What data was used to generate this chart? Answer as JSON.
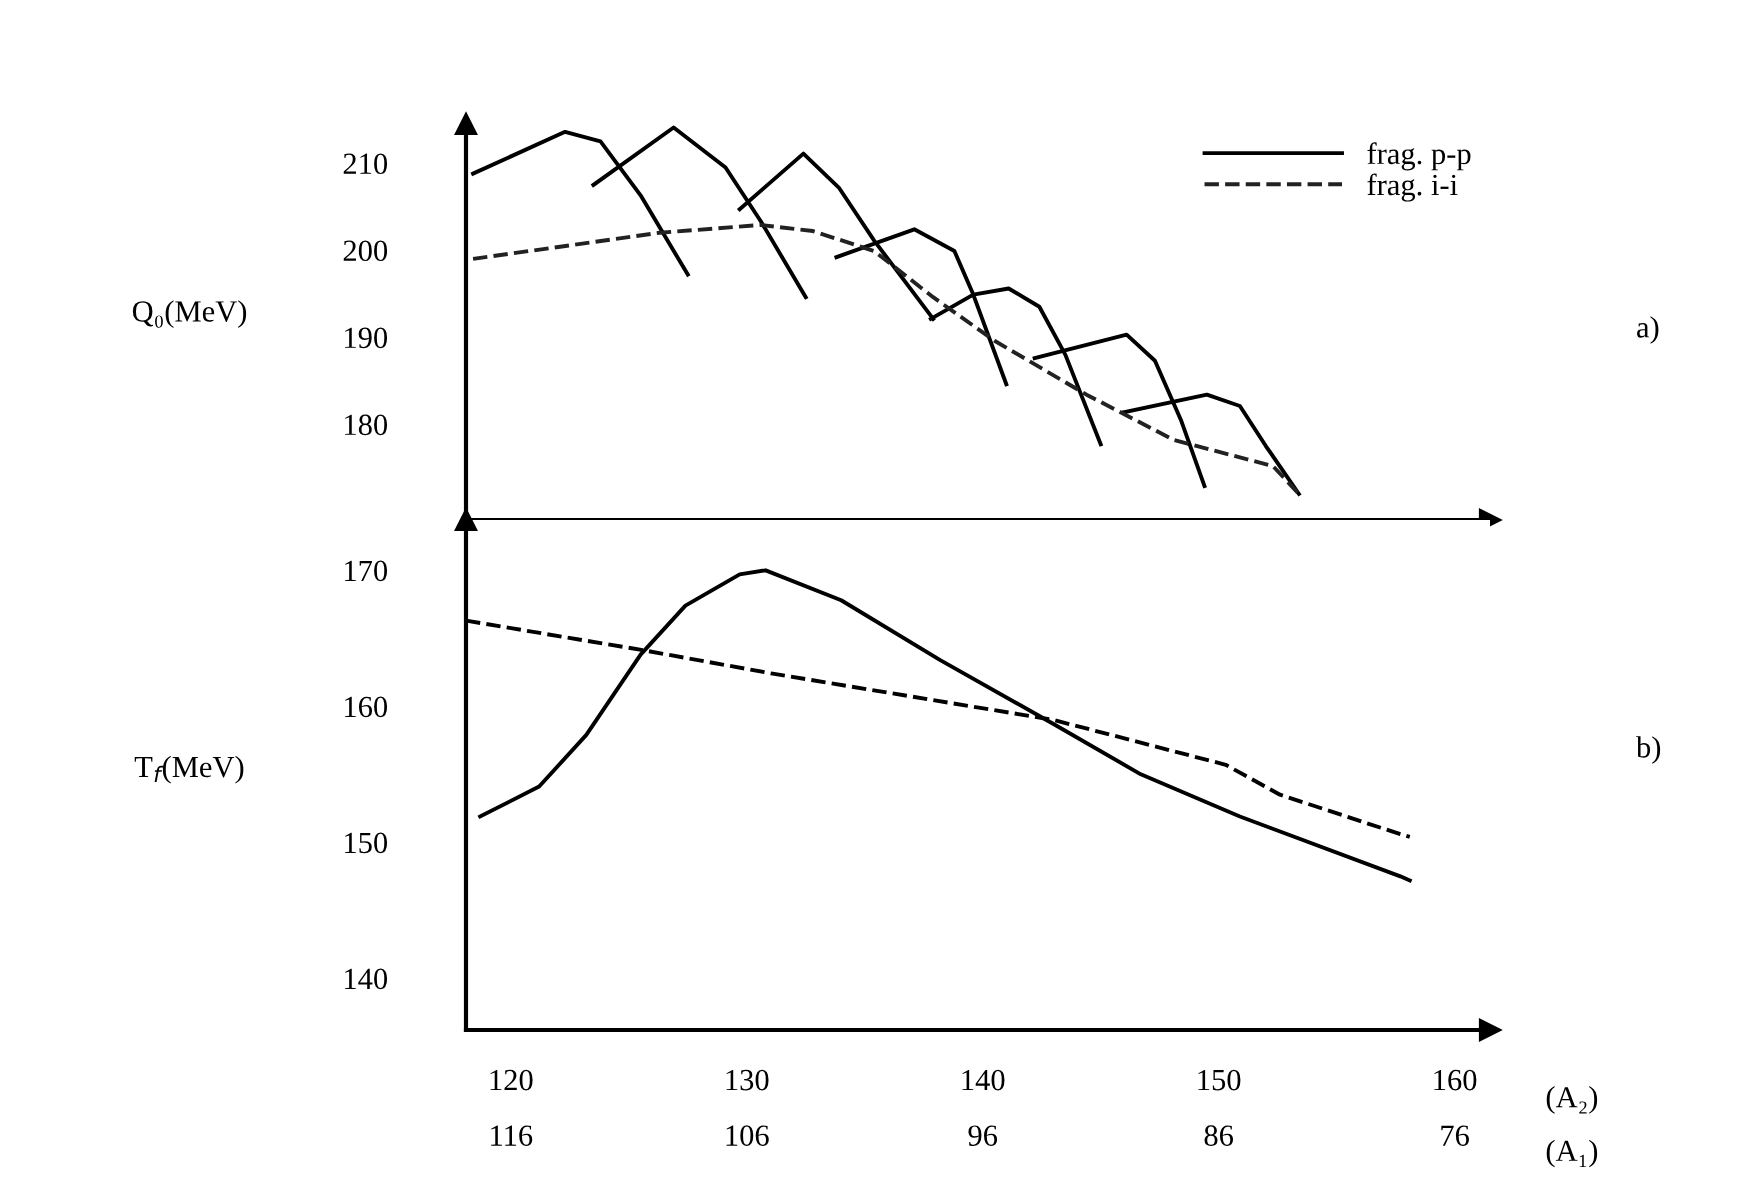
{
  "chart_data": [
    {
      "type": "line",
      "ylabel": "Q₀(MeV)",
      "xlim": [
        118.1,
        161.5
      ],
      "ylim": [
        169,
        214.5
      ],
      "yticks": [
        180,
        190,
        200,
        210
      ],
      "tick_labels": "y",
      "legend": "top right",
      "grid": false,
      "annotations": [
        "a)"
      ],
      "series": [
        {
          "name": "frag. p-p",
          "color": "#000000",
          "line_style": "solid",
          "x": [
            118.4,
            122.3,
            123.8,
            125.5,
            127.5,
            null,
            123.5,
            126.9,
            129.1,
            130.6,
            132.5,
            null,
            129.7,
            132.4,
            133.9,
            135.4,
            137.9,
            null,
            133.8,
            137.1,
            138.8,
            139.6,
            141.0,
            null,
            137.8,
            139.6,
            141.1,
            142.4,
            143.5,
            145.0,
            null,
            142.2,
            146.1,
            147.3,
            148.4,
            149.4,
            null,
            146.0,
            149.5,
            150.9,
            152.0,
            153.4
          ],
          "values": [
            208.8,
            213.6,
            212.5,
            206.3,
            197.2,
            null,
            207.5,
            214.1,
            209.5,
            203.3,
            194.6,
            null,
            204.7,
            211.1,
            207.2,
            201.1,
            192.1,
            null,
            199.2,
            202.4,
            199.9,
            194.9,
            184.6,
            null,
            192.1,
            194.9,
            195.6,
            193.5,
            188.0,
            177.7,
            null,
            187.6,
            190.3,
            187.3,
            180.5,
            172.9,
            null,
            181.4,
            183.4,
            182.1,
            177.5,
            172.0
          ]
        },
        {
          "name": "frag. i-i",
          "color": "#222222",
          "line_style": "dashed",
          "x": [
            118.4,
            126.3,
            130.6,
            132.8,
            135.4,
            137.9,
            140.5,
            144.4,
            148.1,
            152.3,
            153.4
          ],
          "values": [
            199.0,
            202.0,
            202.9,
            202.2,
            199.9,
            194.6,
            189.6,
            183.4,
            178.2,
            175.2,
            172.0
          ]
        }
      ]
    },
    {
      "type": "line",
      "ylabel": "T$_{f}$(MeV)",
      "xlabel": "(A₂)",
      "x2label": "(A₁)",
      "xlim": [
        118.1,
        161.5
      ],
      "xticks": [
        120,
        130,
        140,
        150,
        160
      ],
      "x2lim": [
        117.9,
        74.5
      ],
      "x2ticks": [
        116,
        106,
        96,
        86,
        76
      ],
      "ylim": [
        136.2,
        173.7
      ],
      "yticks": [
        140,
        150,
        160,
        170
      ],
      "grid": false,
      "annotations": [
        "b)"
      ],
      "series": [
        {
          "color": "#000000",
          "line_style": "solid",
          "x": [
            118.7,
            121.2,
            123.2,
            125.5,
            127.4,
            129.7,
            130.8,
            134.0,
            138.2,
            143.0,
            146.7,
            150.9,
            157.7,
            158.1
          ],
          "values": [
            151.9,
            154.1,
            157.9,
            163.8,
            167.4,
            169.7,
            170.0,
            167.8,
            163.4,
            158.7,
            155.0,
            151.9,
            147.5,
            147.2
          ]
        },
        {
          "color": "#000000",
          "line_style": "dashed",
          "x": [
            118.1,
            125.7,
            131.1,
            143.0,
            150.3,
            152.6,
            157.7,
            158.1
          ],
          "values": [
            166.3,
            164.1,
            162.4,
            159.0,
            155.7,
            153.5,
            150.6,
            150.4
          ]
        }
      ]
    }
  ]
}
